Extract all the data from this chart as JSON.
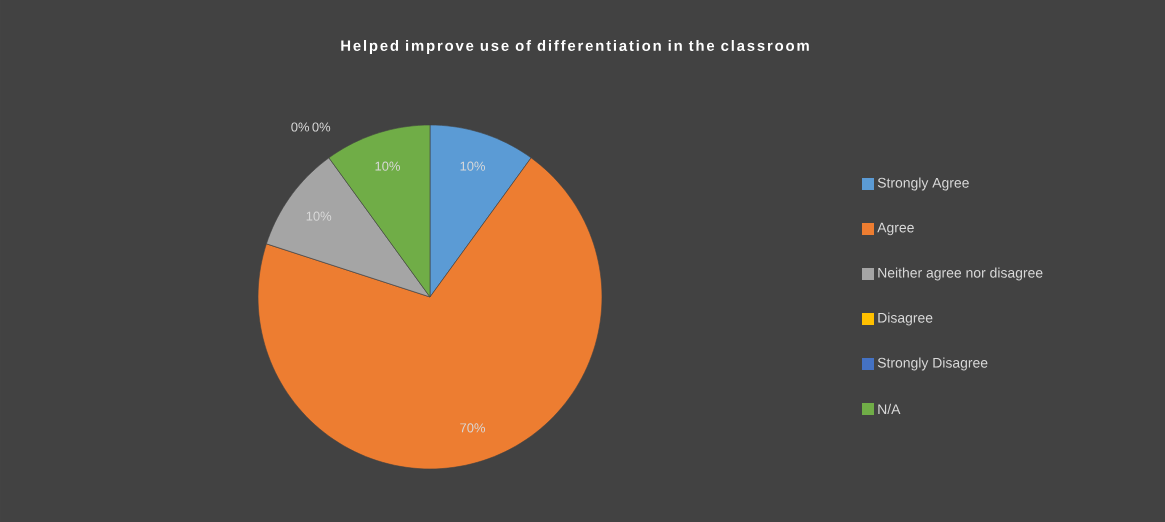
{
  "chart_data": {
    "type": "pie",
    "title": "Helped improve use of differentiation in the classroom",
    "categories": [
      "Strongly Agree",
      "Agree",
      "Neither agree nor disagree",
      "Disagree",
      "Strongly Disagree",
      "N/A"
    ],
    "values": [
      10,
      70,
      10,
      0,
      0,
      10
    ],
    "value_labels": [
      "10%",
      "70%",
      "10%",
      "0%",
      "0%",
      "10%"
    ],
    "colors": [
      "#5b9bd5",
      "#ed7d31",
      "#a5a5a5",
      "#ffc000",
      "#4472c4",
      "#70ad47"
    ],
    "legend": "right"
  }
}
